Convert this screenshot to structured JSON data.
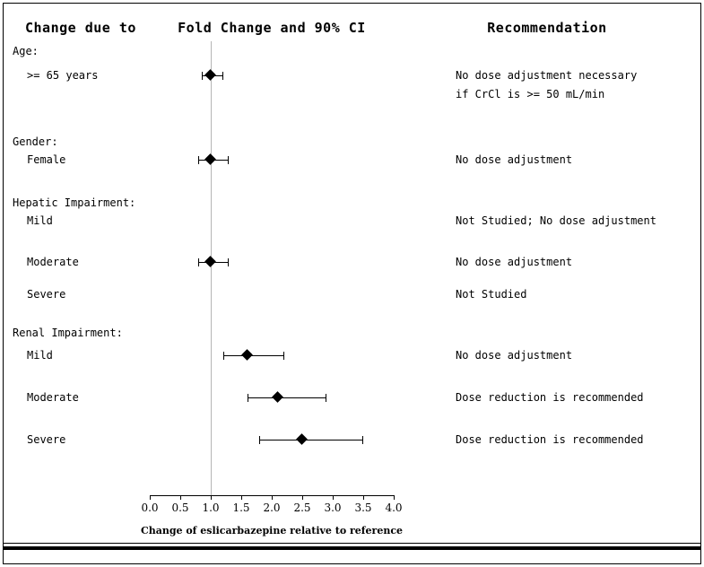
{
  "header": {
    "col_left": "Change due to",
    "col_center": "Fold Change and 90% CI",
    "col_right": "Recommendation"
  },
  "chart_data": {
    "type": "forest",
    "title": "Fold Change and 90% CI",
    "xlabel": "Change of eslicarbazepine relative to reference",
    "x_ticks": [
      "0.0",
      "0.5",
      "1.0",
      "1.5",
      "2.0",
      "2.5",
      "3.0",
      "3.5",
      "4.0"
    ],
    "xlim": [
      0.0,
      4.0
    ],
    "reference_line": 1.0,
    "grid": false,
    "rows": [
      {
        "kind": "group",
        "label": "Age:"
      },
      {
        "kind": "item",
        "label": ">= 65 years",
        "estimate": 1.0,
        "ci": [
          0.85,
          1.2
        ],
        "recommendation": [
          "No dose adjustment necessary",
          "if CrCl is >= 50 mL/min"
        ]
      },
      {
        "kind": "group",
        "label": "Gender:"
      },
      {
        "kind": "item",
        "label": "Female",
        "estimate": 1.0,
        "ci": [
          0.8,
          1.3
        ],
        "recommendation": [
          "No dose adjustment"
        ]
      },
      {
        "kind": "group",
        "label": "Hepatic Impairment:"
      },
      {
        "kind": "item",
        "label": "Mild",
        "estimate": null,
        "ci": null,
        "recommendation": [
          "Not Studied; No dose adjustment"
        ]
      },
      {
        "kind": "item",
        "label": "Moderate",
        "estimate": 1.0,
        "ci": [
          0.8,
          1.3
        ],
        "recommendation": [
          "No dose adjustment"
        ]
      },
      {
        "kind": "item",
        "label": "Severe",
        "estimate": null,
        "ci": null,
        "recommendation": [
          "Not Studied"
        ]
      },
      {
        "kind": "group",
        "label": "Renal Impairment:"
      },
      {
        "kind": "item",
        "label": "Mild",
        "estimate": 1.6,
        "ci": [
          1.2,
          2.2
        ],
        "recommendation": [
          "No dose adjustment"
        ]
      },
      {
        "kind": "item",
        "label": "Moderate",
        "estimate": 2.1,
        "ci": [
          1.6,
          2.9
        ],
        "recommendation": [
          "Dose reduction is recommended"
        ]
      },
      {
        "kind": "item",
        "label": "Severe",
        "estimate": 2.5,
        "ci": [
          1.8,
          3.5
        ],
        "recommendation": [
          "Dose reduction is recommended"
        ]
      }
    ]
  }
}
